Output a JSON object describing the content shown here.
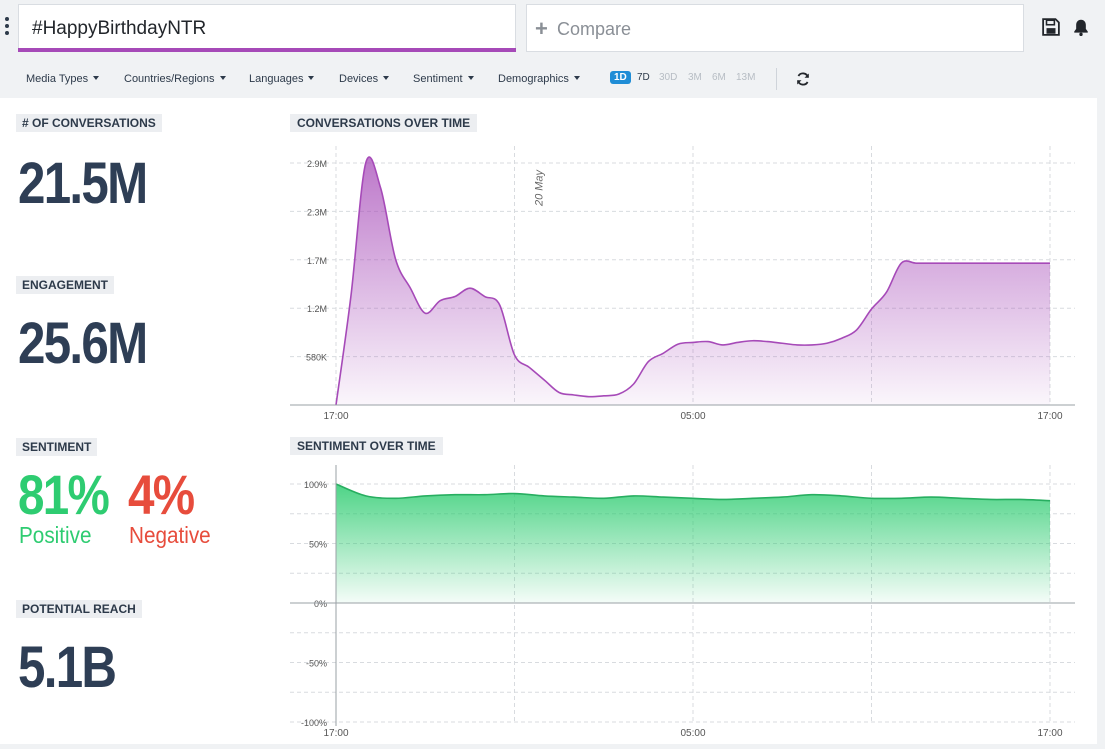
{
  "search": {
    "query": "#HappyBirthdayNTR"
  },
  "compare": {
    "label": "Compare"
  },
  "filters": [
    "Media Types",
    "Countries/Regions",
    "Languages",
    "Devices",
    "Sentiment",
    "Demographics"
  ],
  "ranges": [
    {
      "label": "1D",
      "active": true
    },
    {
      "label": "7D",
      "active": false
    },
    {
      "label": "30D",
      "active": false
    },
    {
      "label": "3M",
      "active": false
    },
    {
      "label": "6M",
      "active": false
    },
    {
      "label": "13M",
      "active": false
    }
  ],
  "kpis": {
    "conversations": {
      "label": "# OF CONVERSATIONS",
      "value": "21.5M"
    },
    "engagement": {
      "label": "ENGAGEMENT",
      "value": "25.6M"
    },
    "sentiment": {
      "label": "SENTIMENT",
      "positive_value": "81%",
      "positive_label": "Positive",
      "negative_value": "4%",
      "negative_label": "Negative"
    },
    "reach": {
      "label": "POTENTIAL REACH",
      "value": "5.1B"
    }
  },
  "colors": {
    "accent": "#a64ab8",
    "positive": "#2ecc71",
    "negative": "#e74c3c",
    "active_range": "#1f8dd6"
  },
  "chart_data": [
    {
      "type": "area",
      "title": "CONVERSATIONS OVER TIME",
      "annotation": "20 May",
      "x_ticks": [
        "17:00",
        "05:00",
        "17:00"
      ],
      "y_ticks": [
        "580K",
        "1.2M",
        "1.7M",
        "2.3M",
        "2.9M"
      ],
      "ylim": [
        0,
        2900000
      ],
      "color": "#a64ab8",
      "grid": true,
      "series": [
        {
          "x_hours": [
            0,
            0.5,
            1,
            1.5,
            2,
            2.5,
            3,
            3.5,
            4,
            4.5,
            5,
            5.5,
            6,
            6.5,
            7,
            7.5,
            8,
            8.5,
            9,
            9.5,
            10,
            10.5,
            11,
            11.5,
            12,
            12.5,
            13,
            13.5,
            14,
            14.5,
            15,
            15.5,
            16,
            16.5,
            17,
            17.5,
            18,
            18.5,
            19,
            19.5,
            20,
            20.5,
            21,
            21.5,
            22,
            22.5,
            23,
            23.5,
            24
          ],
          "values": [
            0,
            1300000,
            2900000,
            2600000,
            1750000,
            1400000,
            1100000,
            1250000,
            1300000,
            1400000,
            1300000,
            1200000,
            600000,
            450000,
            300000,
            150000,
            120000,
            100000,
            110000,
            130000,
            250000,
            520000,
            620000,
            730000,
            750000,
            760000,
            720000,
            750000,
            770000,
            760000,
            740000,
            720000,
            720000,
            740000,
            800000,
            900000,
            1150000,
            1350000,
            1700000,
            1700000,
            1700000,
            1700000,
            1700000,
            1700000,
            1700000,
            1700000,
            1700000,
            1700000,
            1700000
          ]
        }
      ]
    },
    {
      "type": "area",
      "title": "SENTIMENT OVER TIME",
      "x_ticks": [
        "17:00",
        "05:00",
        "17:00"
      ],
      "y_ticks": [
        "100%",
        "50%",
        "0%",
        "-50%",
        "-100%"
      ],
      "ylim": [
        -100,
        100
      ],
      "color": "#2ecc71",
      "grid": true,
      "series": [
        {
          "x_hours": [
            0,
            1,
            2,
            3,
            4,
            5,
            6,
            7,
            8,
            9,
            10,
            11,
            12,
            13,
            14,
            15,
            16,
            17,
            18,
            19,
            20,
            21,
            22,
            23,
            24
          ],
          "values": [
            100,
            90,
            88,
            90,
            91,
            91,
            92,
            90,
            89,
            88,
            90,
            89,
            88,
            87,
            88,
            89,
            91,
            90,
            88,
            88,
            89,
            88,
            87,
            87,
            86
          ]
        }
      ]
    }
  ]
}
